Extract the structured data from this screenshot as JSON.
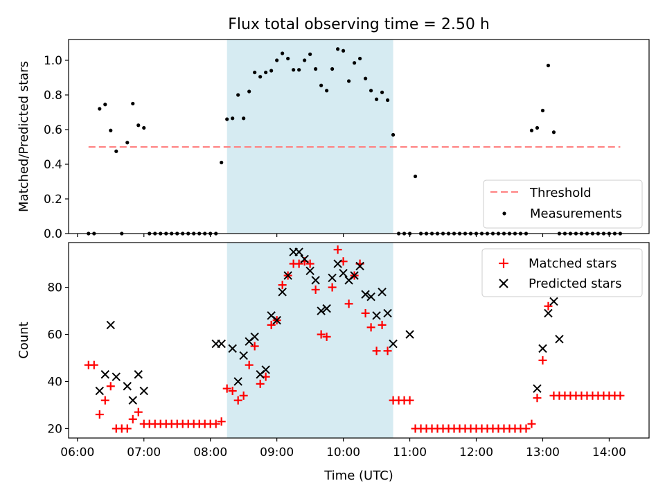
{
  "chart_data": [
    {
      "type": "scatter",
      "title": "Flux total observing time = 2.50 h",
      "ylabel": "Matched/Predicted stars",
      "xlabel": "",
      "ylim": [
        0,
        1.12
      ],
      "xlim": [
        "05:52",
        "14:36"
      ],
      "yticks": [
        "0.0",
        "0.2",
        "0.4",
        "0.6",
        "0.8",
        "1.0"
      ],
      "grid": false,
      "legend": "bottom-right",
      "highlight_span": [
        "08:15",
        "10:45"
      ],
      "highlight_color": "#add8e6",
      "threshold": {
        "name": "Threshold",
        "value": 0.5,
        "x_start": "06:10",
        "x_end": "14:10",
        "color": "#ff8080"
      },
      "series": [
        {
          "name": "Measurements",
          "color": "#000000",
          "x": [
            "06:10",
            "06:15",
            "06:20",
            "06:25",
            "06:30",
            "06:35",
            "06:40",
            "06:45",
            "06:50",
            "06:55",
            "07:00",
            "07:05",
            "07:10",
            "07:15",
            "07:20",
            "07:25",
            "07:30",
            "07:35",
            "07:40",
            "07:45",
            "07:50",
            "07:55",
            "08:00",
            "08:05",
            "08:10",
            "08:15",
            "08:20",
            "08:25",
            "08:30",
            "08:35",
            "08:40",
            "08:45",
            "08:50",
            "08:55",
            "09:00",
            "09:05",
            "09:10",
            "09:15",
            "09:20",
            "09:25",
            "09:30",
            "09:35",
            "09:40",
            "09:45",
            "09:50",
            "09:55",
            "10:00",
            "10:05",
            "10:10",
            "10:15",
            "10:20",
            "10:25",
            "10:30",
            "10:35",
            "10:40",
            "10:45",
            "10:50",
            "10:55",
            "11:00",
            "11:05",
            "11:10",
            "11:15",
            "11:20",
            "11:25",
            "11:30",
            "11:35",
            "11:40",
            "11:45",
            "11:50",
            "11:55",
            "12:00",
            "12:05",
            "12:10",
            "12:15",
            "12:20",
            "12:25",
            "12:30",
            "12:35",
            "12:40",
            "12:45",
            "12:50",
            "12:55",
            "13:00",
            "13:05",
            "13:10",
            "13:15",
            "13:20",
            "13:25",
            "13:30",
            "13:35",
            "13:40",
            "13:45",
            "13:50",
            "13:55",
            "14:00",
            "14:05",
            "14:10"
          ],
          "y": [
            0,
            0,
            0.72,
            0.745,
            0.595,
            0.475,
            0,
            0.525,
            0.75,
            0.625,
            0.61,
            0,
            0,
            0,
            0,
            0,
            0,
            0,
            0,
            0,
            0,
            0,
            0,
            0,
            0.41,
            0.66,
            0.665,
            0.8,
            0.665,
            0.82,
            0.93,
            0.905,
            0.93,
            0.94,
            1.0,
            1.04,
            1.01,
            0.945,
            0.945,
            1.0,
            1.035,
            0.95,
            0.855,
            0.825,
            0.95,
            1.065,
            1.055,
            0.88,
            0.985,
            1.01,
            0.895,
            0.825,
            0.775,
            0.815,
            0.77,
            0.57,
            0,
            0,
            0,
            0.33,
            0,
            0,
            0,
            0,
            0,
            0,
            0,
            0,
            0,
            0,
            0,
            0,
            0,
            0,
            0,
            0,
            0,
            0,
            0,
            0,
            0.595,
            0.61,
            0.71,
            0.97,
            0.585,
            0,
            0,
            0,
            0,
            0,
            0,
            0,
            0,
            0,
            0,
            0,
            0
          ]
        }
      ]
    },
    {
      "type": "scatter",
      "title": "",
      "ylabel": "Count",
      "xlabel": "Time (UTC)",
      "ylim": [
        16,
        99
      ],
      "xlim": [
        "05:52",
        "14:36"
      ],
      "yticks": [
        "20",
        "40",
        "60",
        "80"
      ],
      "xticks": [
        "06:00",
        "07:00",
        "08:00",
        "09:00",
        "10:00",
        "11:00",
        "12:00",
        "13:00",
        "14:00"
      ],
      "grid": false,
      "legend": "top-right",
      "highlight_span": [
        "08:15",
        "10:45"
      ],
      "series": [
        {
          "name": "Matched stars",
          "color": "#ff0000",
          "marker": "+",
          "x": [
            "06:10",
            "06:15",
            "06:20",
            "06:25",
            "06:30",
            "06:35",
            "06:40",
            "06:45",
            "06:50",
            "06:55",
            "07:00",
            "07:05",
            "07:10",
            "07:15",
            "07:20",
            "07:25",
            "07:30",
            "07:35",
            "07:40",
            "07:45",
            "07:50",
            "07:55",
            "08:00",
            "08:05",
            "08:10",
            "08:15",
            "08:20",
            "08:25",
            "08:30",
            "08:35",
            "08:40",
            "08:45",
            "08:50",
            "08:55",
            "09:00",
            "09:05",
            "09:10",
            "09:15",
            "09:20",
            "09:25",
            "09:30",
            "09:35",
            "09:40",
            "09:45",
            "09:50",
            "09:55",
            "10:00",
            "10:05",
            "10:10",
            "10:15",
            "10:20",
            "10:25",
            "10:30",
            "10:35",
            "10:40",
            "10:45",
            "10:50",
            "10:55",
            "11:00",
            "11:05",
            "11:10",
            "11:15",
            "11:20",
            "11:25",
            "11:30",
            "11:35",
            "11:40",
            "11:45",
            "11:50",
            "11:55",
            "12:00",
            "12:05",
            "12:10",
            "12:15",
            "12:20",
            "12:25",
            "12:30",
            "12:35",
            "12:40",
            "12:45",
            "12:50",
            "12:55",
            "13:00",
            "13:05",
            "13:10",
            "13:15",
            "13:20",
            "13:25",
            "13:30",
            "13:35",
            "13:40",
            "13:45",
            "13:50",
            "13:55",
            "14:00",
            "14:05",
            "14:10"
          ],
          "y": [
            47,
            47,
            26,
            32,
            38,
            20,
            20,
            20,
            24,
            27,
            22,
            22,
            22,
            22,
            22,
            22,
            22,
            22,
            22,
            22,
            22,
            22,
            22,
            22,
            23,
            37,
            36,
            32,
            34,
            47,
            55,
            39,
            42,
            64,
            66,
            81,
            85,
            90,
            90,
            91,
            90,
            79,
            60,
            59,
            80,
            96,
            91,
            73,
            85,
            90,
            69,
            63,
            53,
            64,
            53,
            32,
            32,
            32,
            32,
            20,
            20,
            20,
            20,
            20,
            20,
            20,
            20,
            20,
            20,
            20,
            20,
            20,
            20,
            20,
            20,
            20,
            20,
            20,
            20,
            20,
            22,
            33,
            49,
            72,
            34,
            34,
            34,
            34,
            34,
            34,
            34,
            34,
            34,
            34,
            34,
            34,
            34
          ]
        },
        {
          "name": "Predicted stars",
          "color": "#000000",
          "marker": "x",
          "x": [
            "06:20",
            "06:25",
            "06:30",
            "06:35",
            "06:45",
            "06:50",
            "06:55",
            "07:00",
            "08:05",
            "08:10",
            "08:20",
            "08:25",
            "08:30",
            "08:35",
            "08:40",
            "08:45",
            "08:50",
            "08:55",
            "09:00",
            "09:05",
            "09:10",
            "09:15",
            "09:20",
            "09:25",
            "09:30",
            "09:35",
            "09:40",
            "09:45",
            "09:50",
            "09:55",
            "10:00",
            "10:05",
            "10:10",
            "10:15",
            "10:20",
            "10:25",
            "10:30",
            "10:35",
            "10:40",
            "10:45",
            "11:00",
            "12:55",
            "13:00",
            "13:05",
            "13:10",
            "13:15"
          ],
          "y": [
            36,
            43,
            64,
            42,
            38,
            32,
            43,
            36,
            56,
            56,
            54,
            40,
            51,
            57,
            59,
            43,
            45,
            68,
            66,
            78,
            85,
            95,
            95,
            92,
            87,
            83,
            70,
            71,
            84,
            90,
            86,
            83,
            85,
            89,
            77,
            76,
            68,
            78,
            69,
            56,
            60,
            37,
            54,
            69,
            74,
            58
          ]
        }
      ]
    }
  ]
}
